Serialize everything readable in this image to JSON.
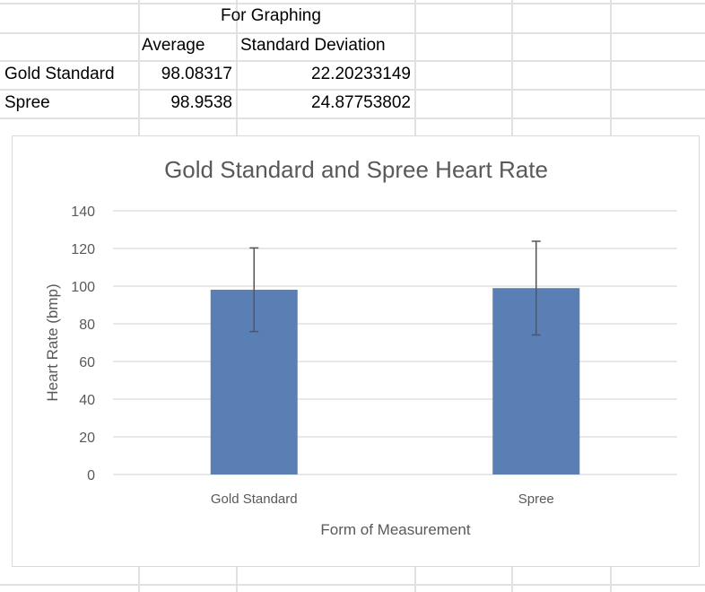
{
  "table": {
    "group_header": "For Graphing",
    "col_headers": [
      "Average",
      "Standard Deviation"
    ],
    "rows": [
      {
        "label": "Gold Standard",
        "average": "98.08317",
        "sd": "22.20233149"
      },
      {
        "label": "Spree",
        "average": "98.9538",
        "sd": "24.87753802"
      }
    ]
  },
  "chart_data": {
    "type": "bar",
    "title": "Gold Standard and Spree Heart Rate",
    "xlabel": "Form of Measurement",
    "ylabel": "Heart Rate (bmp)",
    "categories": [
      "Gold Standard",
      "Spree"
    ],
    "values": [
      98.08317,
      98.9538
    ],
    "error_bars": [
      22.20233149,
      24.87753802
    ],
    "ylim": [
      0,
      140
    ],
    "yticks": [
      "0",
      "20",
      "40",
      "60",
      "80",
      "100",
      "120",
      "140"
    ],
    "grid": true,
    "legend": "none",
    "bar_color": "#5a7fb5",
    "error_color": "#555555"
  }
}
